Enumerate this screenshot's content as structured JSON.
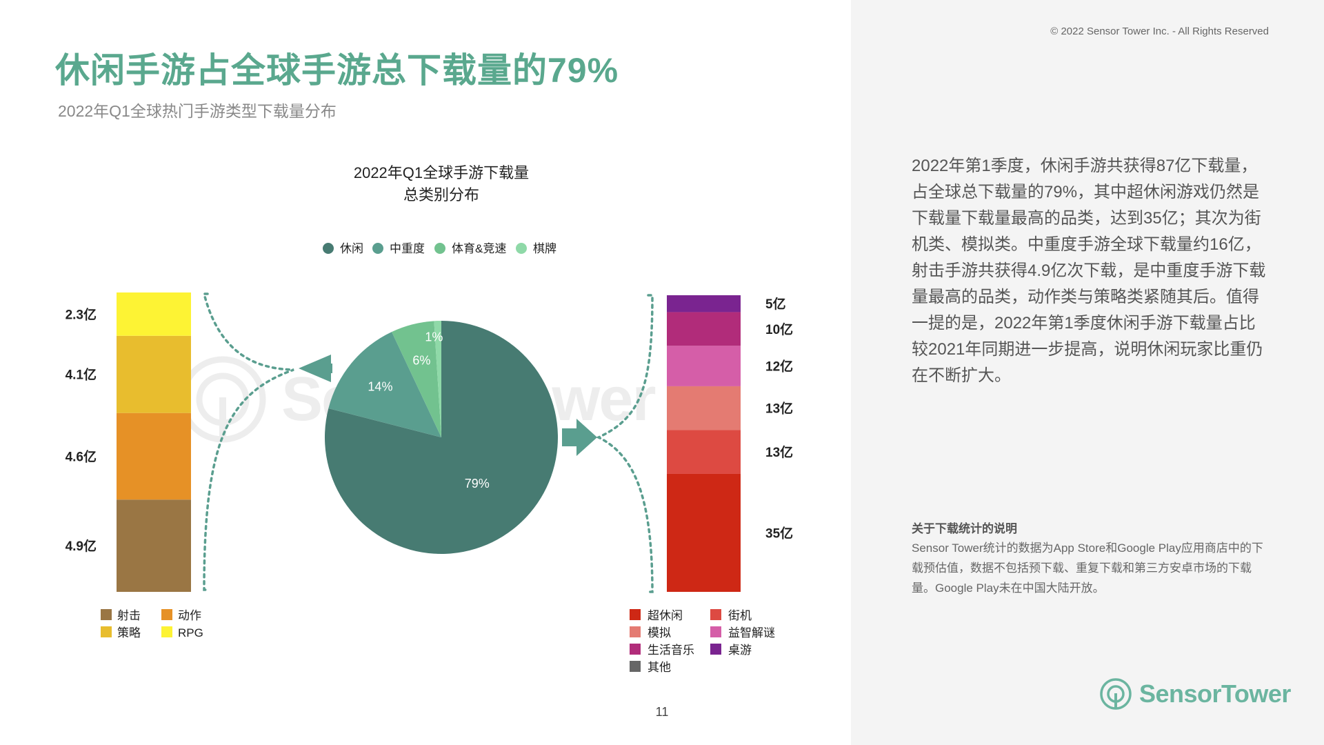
{
  "page": {
    "title": "休闲手游占全球手游总下载量的79%",
    "subtitle": "2022年Q1全球热门手游类型下载量分布",
    "page_number": "11"
  },
  "sidebar": {
    "copyright": "© 2022 Sensor Tower Inc. - All Rights Reserved",
    "summary": "2022年第1季度，休闲手游共获得87亿下载量，占全球总下载量的79%，其中超休闲游戏仍然是下载量下载量最高的品类，达到35亿；其次为街机类、模拟类。中重度手游全球下载量约16亿，射击手游共获得4.9亿次下载，是中重度手游下载量最高的品类，动作类与策略类紧随其后。值得一提的是，2022年第1季度休闲手游下载量占比较2021年同期进一步提高，说明休闲玩家比重仍在不断扩大。",
    "note_title": "关于下载统计的说明",
    "note_body": "Sensor Tower统计的数据为App Store和Google Play应用商店中的下载预估值，数据不包括预下载、重复下载和第三方安卓市场的下载量。Google Play未在中国大陆开放。",
    "brand": "SensorTower"
  },
  "watermark": "SensorTower",
  "colors": {
    "accent": "#5aa88e",
    "casual": "#477b72",
    "midcore": "#5a9e8f",
    "sports": "#72c28f",
    "board": "#8fd9a8",
    "connector": "#5a9e8f"
  },
  "chart_data": [
    {
      "type": "pie",
      "title_lines": [
        "2022年Q1全球手游下载量",
        "总类别分布"
      ],
      "legend": [
        "休闲",
        "中重度",
        "体育&竞速",
        "棋牌"
      ],
      "slices": [
        {
          "name": "休闲",
          "value": 79,
          "label": "79%",
          "color": "#477b72"
        },
        {
          "name": "中重度",
          "value": 14,
          "label": "14%",
          "color": "#5a9e8f"
        },
        {
          "name": "体育&竞速",
          "value": 6,
          "label": "6%",
          "color": "#72c28f"
        },
        {
          "name": "棋牌",
          "value": 1,
          "label": "1%",
          "color": "#8fd9a8"
        }
      ]
    },
    {
      "type": "bar",
      "stacked": true,
      "unit": "亿",
      "series": [
        {
          "name": "射击",
          "value": 4.9,
          "label": "4.9亿",
          "color": "#9a7644"
        },
        {
          "name": "动作",
          "value": 4.6,
          "label": "4.6亿",
          "color": "#e69126"
        },
        {
          "name": "策略",
          "value": 4.1,
          "label": "4.1亿",
          "color": "#e8bd2e"
        },
        {
          "name": "RPG",
          "value": 2.3,
          "label": "2.3亿",
          "color": "#fdf334"
        }
      ]
    },
    {
      "type": "bar",
      "stacked": true,
      "unit": "亿",
      "series": [
        {
          "name": "超休闲",
          "value": 35,
          "label": "35亿",
          "color": "#ce2815"
        },
        {
          "name": "街机",
          "value": 13,
          "label": "13亿",
          "color": "#dd4a42"
        },
        {
          "name": "模拟",
          "value": 13,
          "label": "13亿",
          "color": "#e47b72"
        },
        {
          "name": "益智解谜",
          "value": 12,
          "label": "12亿",
          "color": "#d55ea8"
        },
        {
          "name": "生活音乐",
          "value": 10,
          "label": "10亿",
          "color": "#b12c7a"
        },
        {
          "name": "桌游",
          "value": 5,
          "label": "5亿",
          "color": "#7a2490"
        },
        {
          "name": "其他",
          "value": 0,
          "label": "",
          "color": "#666666"
        }
      ]
    }
  ]
}
